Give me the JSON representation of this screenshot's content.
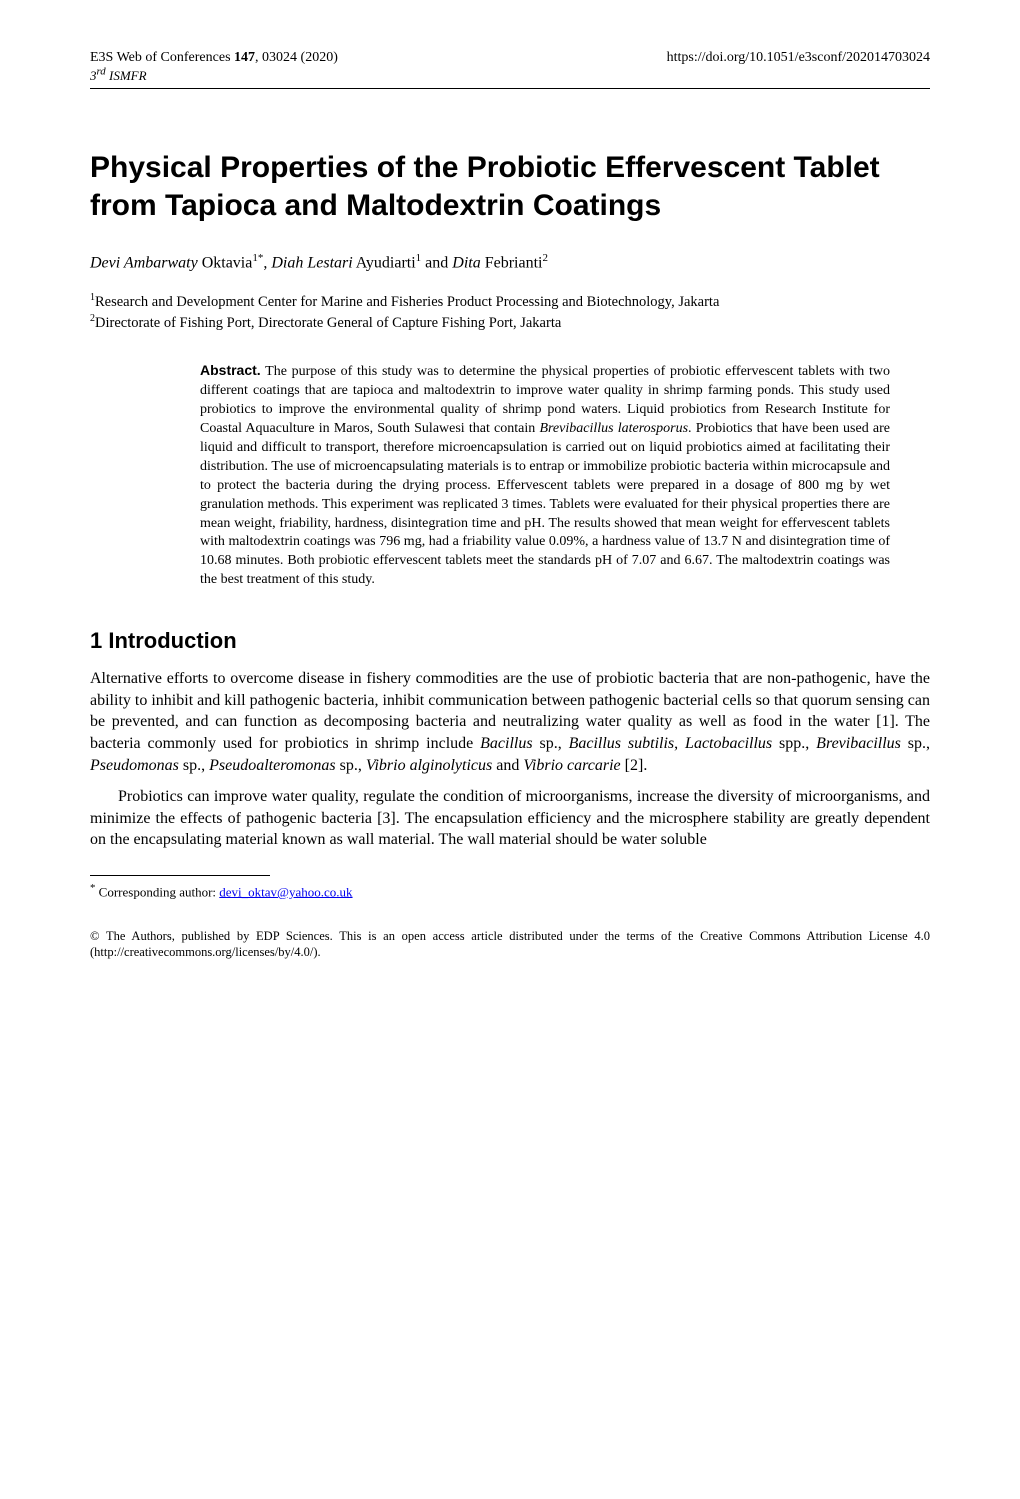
{
  "header": {
    "left_line1_a": "E3S Web of Conferences ",
    "left_line1_bold": "147",
    "left_line1_b": ", 03024 (2020)",
    "left_line2": "3rd ISMFR",
    "right": "https://doi.org/10.1051/e3sconf/202014703024"
  },
  "title": "Physical Properties of the Probiotic Effervescent Tablet from Tapioca and Maltodextrin Coatings",
  "authors": {
    "a1_first": "Devi Ambarwaty",
    "a1_last": " Oktavia",
    "a1_sup": "1*",
    "sep1": ", ",
    "a2_first": "Diah Lestari",
    "a2_last": " Ayudiarti",
    "a2_sup": "1",
    "sep2": " and ",
    "a3_first": "Dita",
    "a3_last": " Febrianti",
    "a3_sup": "2"
  },
  "affiliations": {
    "aff1_sup": "1",
    "aff1": "Research and Development Center for Marine and Fisheries Product Processing and Biotechnology, Jakarta",
    "aff2_sup": "2",
    "aff2": "Directorate of Fishing Port, Directorate General of Capture Fishing Port, Jakarta"
  },
  "abstract": {
    "label": "Abstract.",
    "text_1": " The purpose of this study was to determine the physical properties of probiotic effervescent tablets with two different coatings that are tapioca and maltodextrin to improve water quality in shrimp farming ponds. This study used probiotics to improve the environmental quality of shrimp pond waters. Liquid probiotics from Research Institute for Coastal Aquaculture in Maros, South Sulawesi that contain ",
    "italic_1": "Brevibacillus laterosporus",
    "text_2": ". Probiotics that have been used are liquid and difficult to transport, therefore microencapsulation is carried out on liquid probiotics aimed at facilitating their distribution. The use of microencapsulating materials is to entrap or immobilize probiotic bacteria within microcapsule and to protect the bacteria during the drying process. Effervescent tablets were prepared in a dosage of 800 mg by wet granulation methods. This experiment was replicated 3 times. Tablets were evaluated for their physical properties there are mean weight, friability, hardness, disintegration time and pH. The results showed that mean weight for effervescent tablets with maltodextrin coatings was 796 mg, had a friability value 0.09%, a hardness value of 13.7 N and disintegration time of 10.68 minutes. Both probiotic effervescent tablets meet the standards pH of 7.07 and 6.67. The maltodextrin coatings was the best treatment of this study."
  },
  "section1": {
    "heading": "1 Introduction",
    "p1_a": "Alternative efforts to overcome disease in fishery commodities are the use of probiotic bacteria that are non-pathogenic, have the ability to inhibit and kill pathogenic bacteria, inhibit communication between pathogenic bacterial cells so that quorum sensing can be prevented, and can function as decomposing bacteria and neutralizing water quality as well as food in the water [1]. The bacteria commonly used for probiotics in shrimp include ",
    "p1_i1": "Bacillus",
    "p1_b": " sp., ",
    "p1_i2": "Bacillus subtilis",
    "p1_c": ", ",
    "p1_i3": "Lactobacillus",
    "p1_d": " spp., ",
    "p1_i4": "Brevibacillus",
    "p1_e": " sp., ",
    "p1_i5": "Pseudomonas",
    "p1_f": " sp., ",
    "p1_i6": "Pseudoalteromonas",
    "p1_g": " sp., ",
    "p1_i7": "Vibrio alginolyticus",
    "p1_h": " and ",
    "p1_i8": "Vibrio carcarie",
    "p1_i": " [2].",
    "p2": "Probiotics can improve water quality, regulate the condition of microorganisms, increase the diversity of microorganisms, and minimize the effects of pathogenic bacteria [3]. The encapsulation efficiency and the microsphere stability are greatly dependent on the encapsulating material known as wall material. The wall material should be water soluble"
  },
  "footnote": {
    "marker": "*",
    "label": " Corresponding author: ",
    "link_text": "devi_oktav@yahoo.co.uk"
  },
  "license": "© The Authors, published by EDP Sciences. This is an open access article distributed under the terms of the Creative Commons Attribution License 4.0 (http://creativecommons.org/licenses/by/4.0/)."
}
